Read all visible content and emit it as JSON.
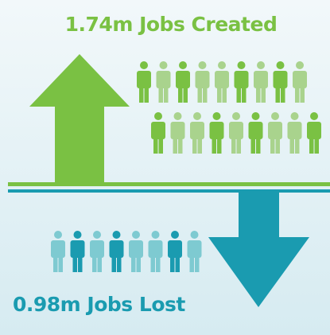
{
  "header": {
    "title": "1.74m Jobs Created"
  },
  "footer": {
    "title": "0.98m Jobs Lost"
  }
}
